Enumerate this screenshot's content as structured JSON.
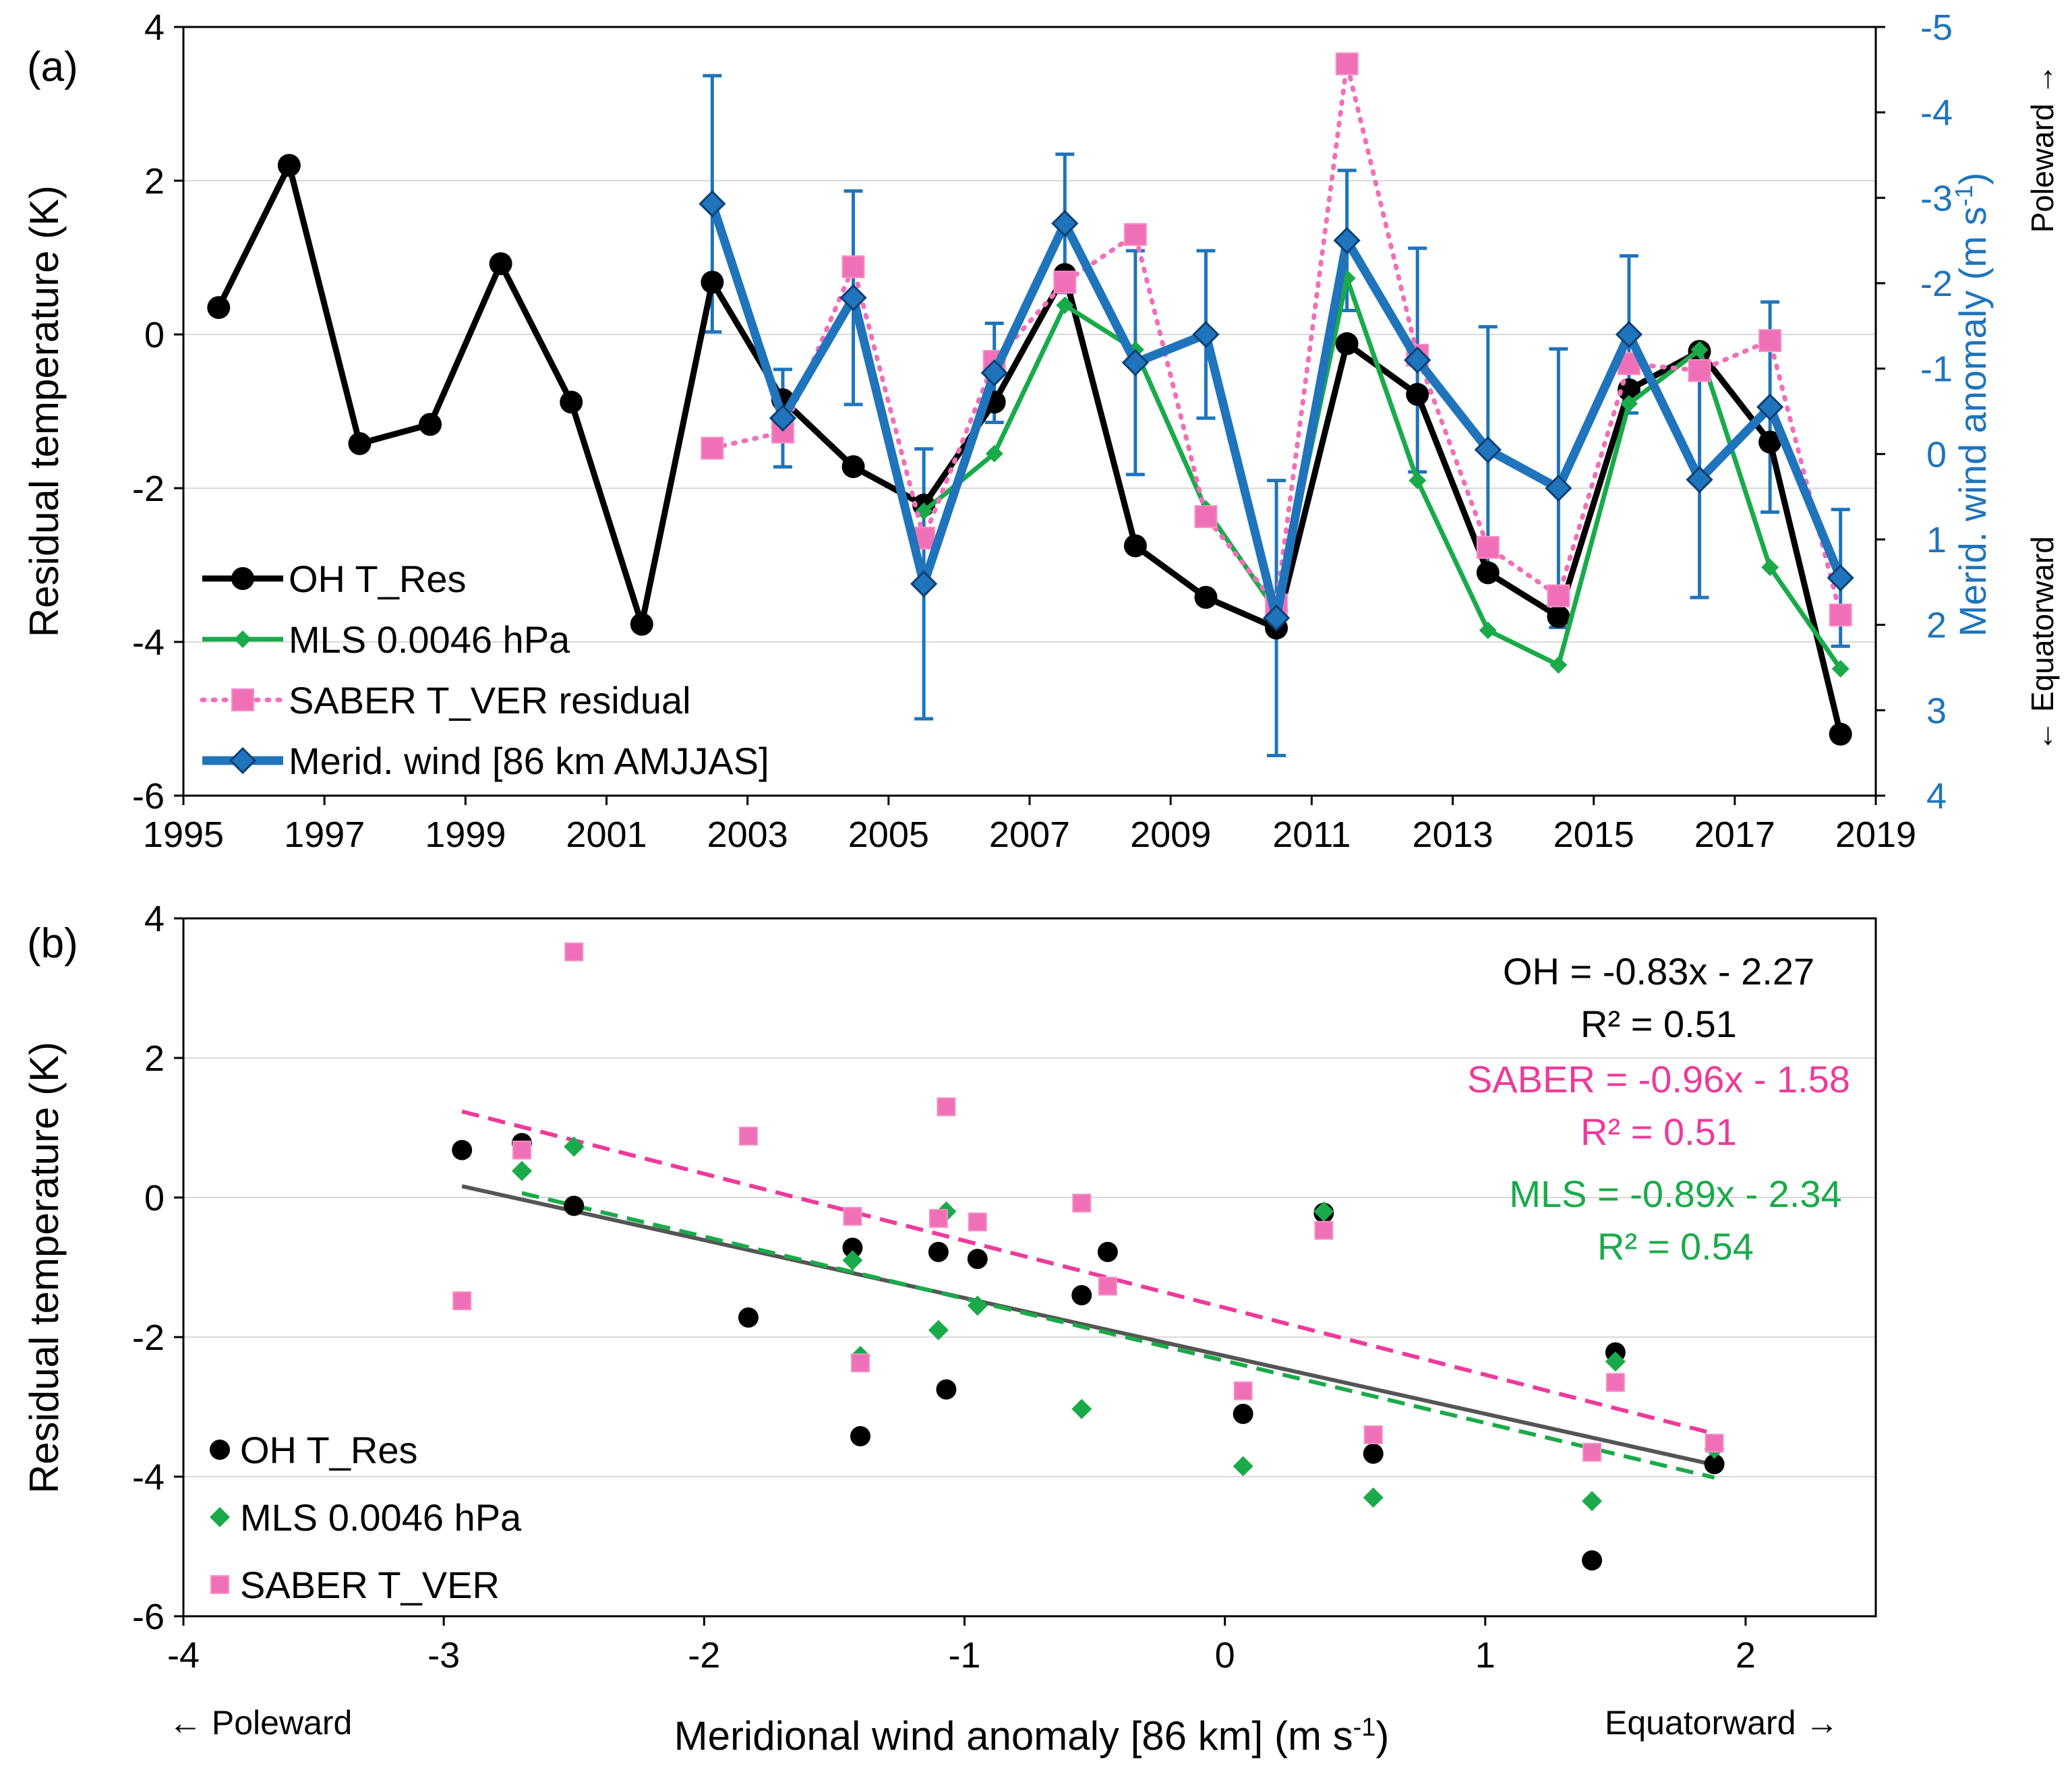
{
  "chart_data": [
    {
      "type": "line",
      "panel_label": "(a)",
      "xlabel": "",
      "ylabel": "Residual temperature (K)",
      "y2label_main": "Merid. wind anomaly (m s",
      "y2label_sup": "-1",
      "y2label_end": ")",
      "y2_top_note": "Poleward →",
      "y2_bottom_note": "← Equatorward",
      "xlim": [
        1995,
        2019
      ],
      "ylim": [
        -6,
        4
      ],
      "y2lim_top_to_bottom": [
        -5,
        4
      ],
      "xticks": [
        "1995",
        "1997",
        "1999",
        "2001",
        "2003",
        "2005",
        "2007",
        "2009",
        "2011",
        "2013",
        "2015",
        "2017",
        "2019"
      ],
      "yticks": [
        "-6",
        "-4",
        "-2",
        "0",
        "2",
        "4"
      ],
      "y2ticks": [
        "-5",
        "-4",
        "-3",
        "-2",
        "-1",
        "0",
        "1",
        "2",
        "3",
        "4"
      ],
      "grid": "horizontal",
      "legend_position": "bottom-left",
      "series": [
        {
          "name": "OH T_Res",
          "color": "#000000",
          "style": "solid",
          "marker": "circle",
          "axis": "left",
          "x": [
            1995.5,
            1996.5,
            1997.5,
            1998.5,
            1999.5,
            2000.5,
            2001.5,
            2002.5,
            2003.5,
            2004.5,
            2005.5,
            2006.5,
            2007.5,
            2008.5,
            2009.5,
            2010.5,
            2011.5,
            2012.5,
            2013.5,
            2014.5,
            2015.5,
            2016.5,
            2017.5,
            2018.5
          ],
          "values": [
            0.35,
            2.2,
            -1.42,
            -1.17,
            0.92,
            -0.88,
            -3.77,
            0.68,
            -0.85,
            -1.72,
            -2.22,
            -0.88,
            0.78,
            -2.75,
            -3.42,
            -3.82,
            -0.12,
            -0.78,
            -3.1,
            -3.67,
            -0.72,
            -0.22,
            -1.4,
            -5.2
          ]
        },
        {
          "name": "MLS 0.0046 hPa",
          "color": "#1aaa4a",
          "style": "solid",
          "marker": "diamond",
          "axis": "left",
          "x": [
            2005.5,
            2006.5,
            2007.5,
            2008.5,
            2009.5,
            2010.5,
            2011.5,
            2012.5,
            2013.5,
            2014.5,
            2015.5,
            2016.5,
            2017.5,
            2018.5
          ],
          "values": [
            -2.3,
            -1.55,
            0.38,
            -0.2,
            -2.27,
            -3.6,
            0.73,
            -1.9,
            -3.85,
            -4.3,
            -0.9,
            -0.2,
            -3.03,
            -4.35
          ]
        },
        {
          "name": "SABER T_VER residual",
          "color": "#f070b8",
          "style": "dotted",
          "marker": "square",
          "axis": "left",
          "x": [
            2002.5,
            2003.5,
            2004.5,
            2005.5,
            2006.5,
            2007.5,
            2008.5,
            2009.5,
            2010.5,
            2011.5,
            2012.5,
            2013.5,
            2014.5,
            2015.5,
            2016.5,
            2017.5,
            2018.5
          ],
          "values": [
            -1.48,
            -1.27,
            0.88,
            -2.65,
            -0.35,
            0.68,
            1.3,
            -2.37,
            -3.52,
            3.52,
            -0.27,
            -2.77,
            -3.4,
            -0.38,
            -0.47,
            -0.08,
            -3.65
          ]
        },
        {
          "name": "Merid. wind [86 km AMJJAS]",
          "color": "#1f74bb",
          "style": "solid",
          "marker": "diamond",
          "axis": "right",
          "x": [
            2002.5,
            2003.5,
            2004.5,
            2005.5,
            2006.5,
            2007.5,
            2008.5,
            2009.5,
            2010.5,
            2011.5,
            2012.5,
            2013.5,
            2014.5,
            2015.5,
            2016.5,
            2017.5,
            2018.5
          ],
          "values": [
            -2.93,
            -0.42,
            -1.83,
            1.52,
            -0.95,
            -2.7,
            -1.07,
            -1.4,
            1.92,
            -2.5,
            -1.1,
            -0.05,
            0.4,
            -1.4,
            0.3,
            -0.55,
            1.45
          ],
          "error": [
            1.5,
            0.57,
            1.25,
            1.58,
            0.58,
            0.81,
            1.31,
            0.98,
            1.61,
            0.82,
            1.31,
            1.44,
            1.63,
            0.92,
            1.38,
            1.23,
            0.8
          ]
        }
      ]
    },
    {
      "type": "scatter",
      "panel_label": "(b)",
      "xlabel_main": "Meridional wind anomaly [86 km] (m s",
      "xlabel_sup": "-1",
      "xlabel_end": ")",
      "ylabel": "Residual temperature (K)",
      "x_left_note": "← Poleward",
      "x_right_note": "Equatorward →",
      "xlim": [
        -4,
        2.5
      ],
      "ylim": [
        -6,
        4
      ],
      "xticks": [
        "-4",
        "-3",
        "-2",
        "-1",
        "0",
        "1",
        "2"
      ],
      "yticks": [
        "-6",
        "-4",
        "-2",
        "0",
        "2",
        "4"
      ],
      "grid": "horizontal",
      "legend_position": "bottom-left",
      "series": [
        {
          "name": "OH T_Res",
          "color": "#000000",
          "marker": "circle",
          "x": [
            -2.93,
            -2.7,
            -2.5,
            -1.83,
            -1.43,
            -1.4,
            -1.1,
            -1.07,
            -0.95,
            -0.55,
            -0.45,
            0.07,
            0.38,
            0.57,
            1.41,
            1.5,
            1.88
          ],
          "y": [
            0.68,
            0.78,
            -0.12,
            -1.72,
            -0.72,
            -3.42,
            -0.78,
            -2.75,
            -0.88,
            -1.4,
            -0.78,
            -3.1,
            -0.22,
            -3.67,
            -5.2,
            -2.22,
            -3.82
          ]
        },
        {
          "name": "MLS 0.0046 hPa",
          "color": "#1aaa4a",
          "marker": "diamond",
          "x": [
            -2.7,
            -2.5,
            -1.43,
            -1.4,
            -1.1,
            -1.07,
            -0.95,
            -0.55,
            0.07,
            0.38,
            0.57,
            1.41,
            1.5,
            1.88
          ],
          "y": [
            0.38,
            0.73,
            -0.9,
            -2.27,
            -1.9,
            -0.2,
            -1.55,
            -3.03,
            -3.85,
            -0.2,
            -4.3,
            -4.35,
            -2.35,
            -3.6
          ]
        },
        {
          "name": "SABER T_VER",
          "color": "#f070b8",
          "marker": "square",
          "x": [
            -2.93,
            -2.7,
            -2.5,
            -1.83,
            -1.43,
            -1.4,
            -1.1,
            -1.07,
            -0.95,
            -0.55,
            -0.45,
            0.07,
            0.38,
            0.57,
            1.41,
            1.5,
            1.88
          ],
          "y": [
            -1.48,
            0.68,
            3.52,
            0.88,
            -0.27,
            -2.37,
            -0.3,
            1.3,
            -0.35,
            -0.08,
            -1.27,
            -2.77,
            -0.47,
            -3.4,
            -3.65,
            -2.65,
            -3.52
          ]
        }
      ],
      "fits": [
        {
          "name": "OH",
          "slope": -0.83,
          "intercept": -2.27,
          "color": "#555555",
          "style": "solid",
          "x_range": [
            -2.93,
            1.88
          ],
          "equation": "OH = -0.83x - 2.27",
          "r2": "R² = 0.51",
          "text_color": "#000000"
        },
        {
          "name": "SABER",
          "slope": -0.96,
          "intercept": -1.58,
          "color": "#ee3a9a",
          "style": "dashed",
          "x_range": [
            -2.93,
            1.88
          ],
          "equation": "SABER = -0.96x - 1.58",
          "r2": "R² = 0.51",
          "text_color": "#ee3a9a"
        },
        {
          "name": "MLS",
          "slope": -0.89,
          "intercept": -2.34,
          "color": "#1aaa4a",
          "style": "dashed",
          "x_range": [
            -2.7,
            1.88
          ],
          "equation": "MLS = -0.89x - 2.34",
          "r2": "R² = 0.54",
          "text_color": "#1aaa4a"
        }
      ]
    }
  ]
}
